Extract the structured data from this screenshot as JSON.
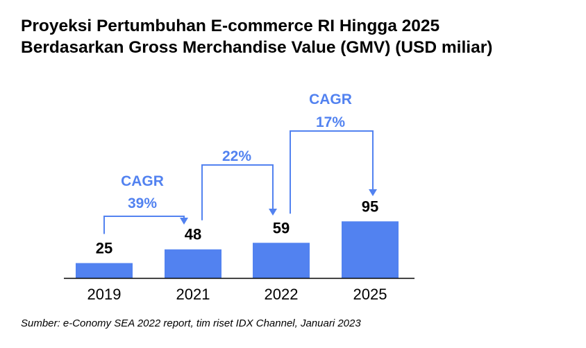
{
  "title_line1": "Proyeksi Pertumbuhan E-commerce RI Hingga 2025",
  "title_line2": "Berdasarkan Gross Merchandise Value (GMV) (USD miliar)",
  "source": "Sumber: e-Conomy SEA 2022 report, tim riset IDX Channel, Januari 2023",
  "colors": {
    "bar": "#5282f0",
    "annotation": "#5282f0",
    "text": "#000000",
    "axis": "#000000"
  },
  "chart_data": {
    "type": "bar",
    "categories": [
      "2019",
      "2021",
      "2022",
      "2025"
    ],
    "values": [
      25,
      48,
      59,
      95
    ],
    "title": "Proyeksi Pertumbuhan E-commerce RI Hingga 2025 Berdasarkan Gross Merchandise Value (GMV) (USD miliar)",
    "xlabel": "",
    "ylabel": "",
    "grid": false,
    "annotations": [
      {
        "from": "2019",
        "to": "2021",
        "label": [
          "CAGR",
          "39%"
        ]
      },
      {
        "from": "2021",
        "to": "2022",
        "label": [
          "22%"
        ]
      },
      {
        "from": "2022",
        "to": "2025",
        "label": [
          "CAGR",
          "17%"
        ]
      }
    ]
  }
}
